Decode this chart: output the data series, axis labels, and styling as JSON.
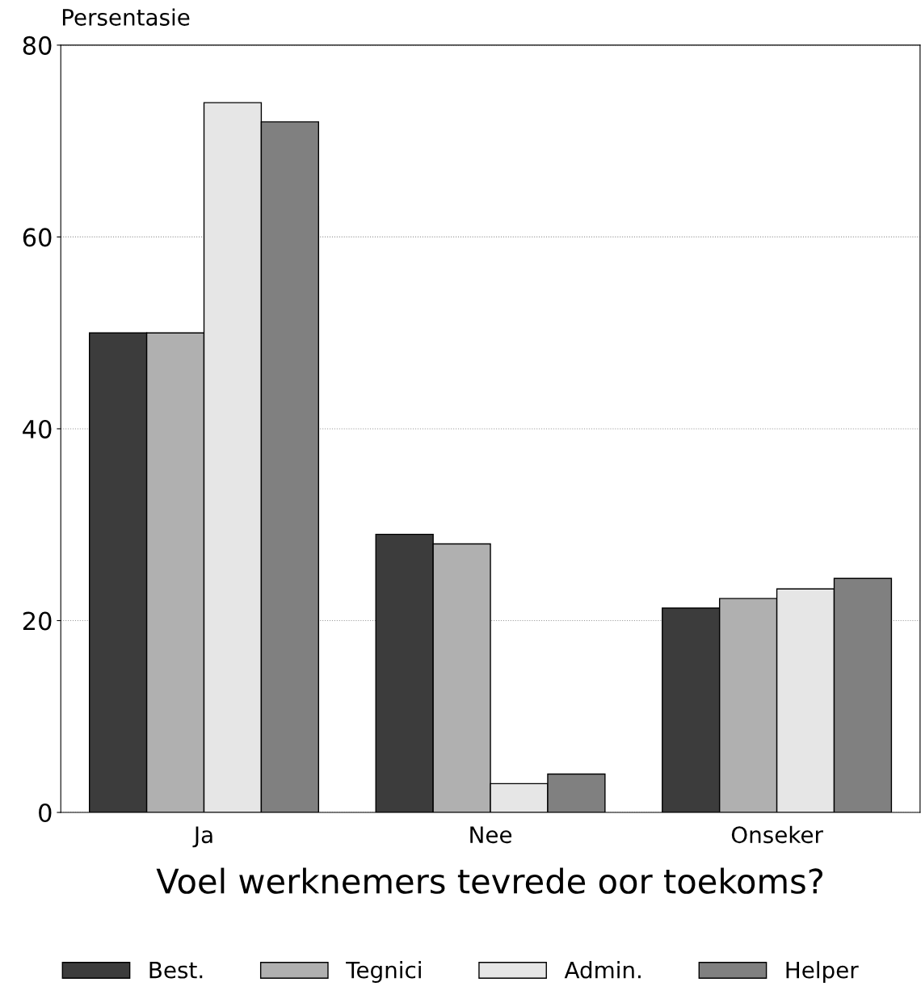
{
  "chart_data": {
    "type": "bar",
    "ylabel": "Persentasie",
    "xlabel": "Voel werknemers tevrede oor toekoms?",
    "categories": [
      "Ja",
      "Nee",
      "Onseker"
    ],
    "series": [
      {
        "name": "Best.",
        "color": "#3c3c3c",
        "values": [
          50,
          29,
          21.3
        ]
      },
      {
        "name": "Tegnici",
        "color": "#b0b0b0",
        "values": [
          50,
          28,
          22.3
        ]
      },
      {
        "name": "Admin.",
        "color": "#e6e6e6",
        "values": [
          74,
          3,
          23.3
        ]
      },
      {
        "name": "Helper",
        "color": "#808080",
        "values": [
          72,
          4,
          24.4
        ]
      }
    ],
    "ylim": [
      0,
      80
    ],
    "yticks": [
      0,
      20,
      40,
      60,
      80
    ],
    "grid": "y",
    "legend": "bottom"
  }
}
